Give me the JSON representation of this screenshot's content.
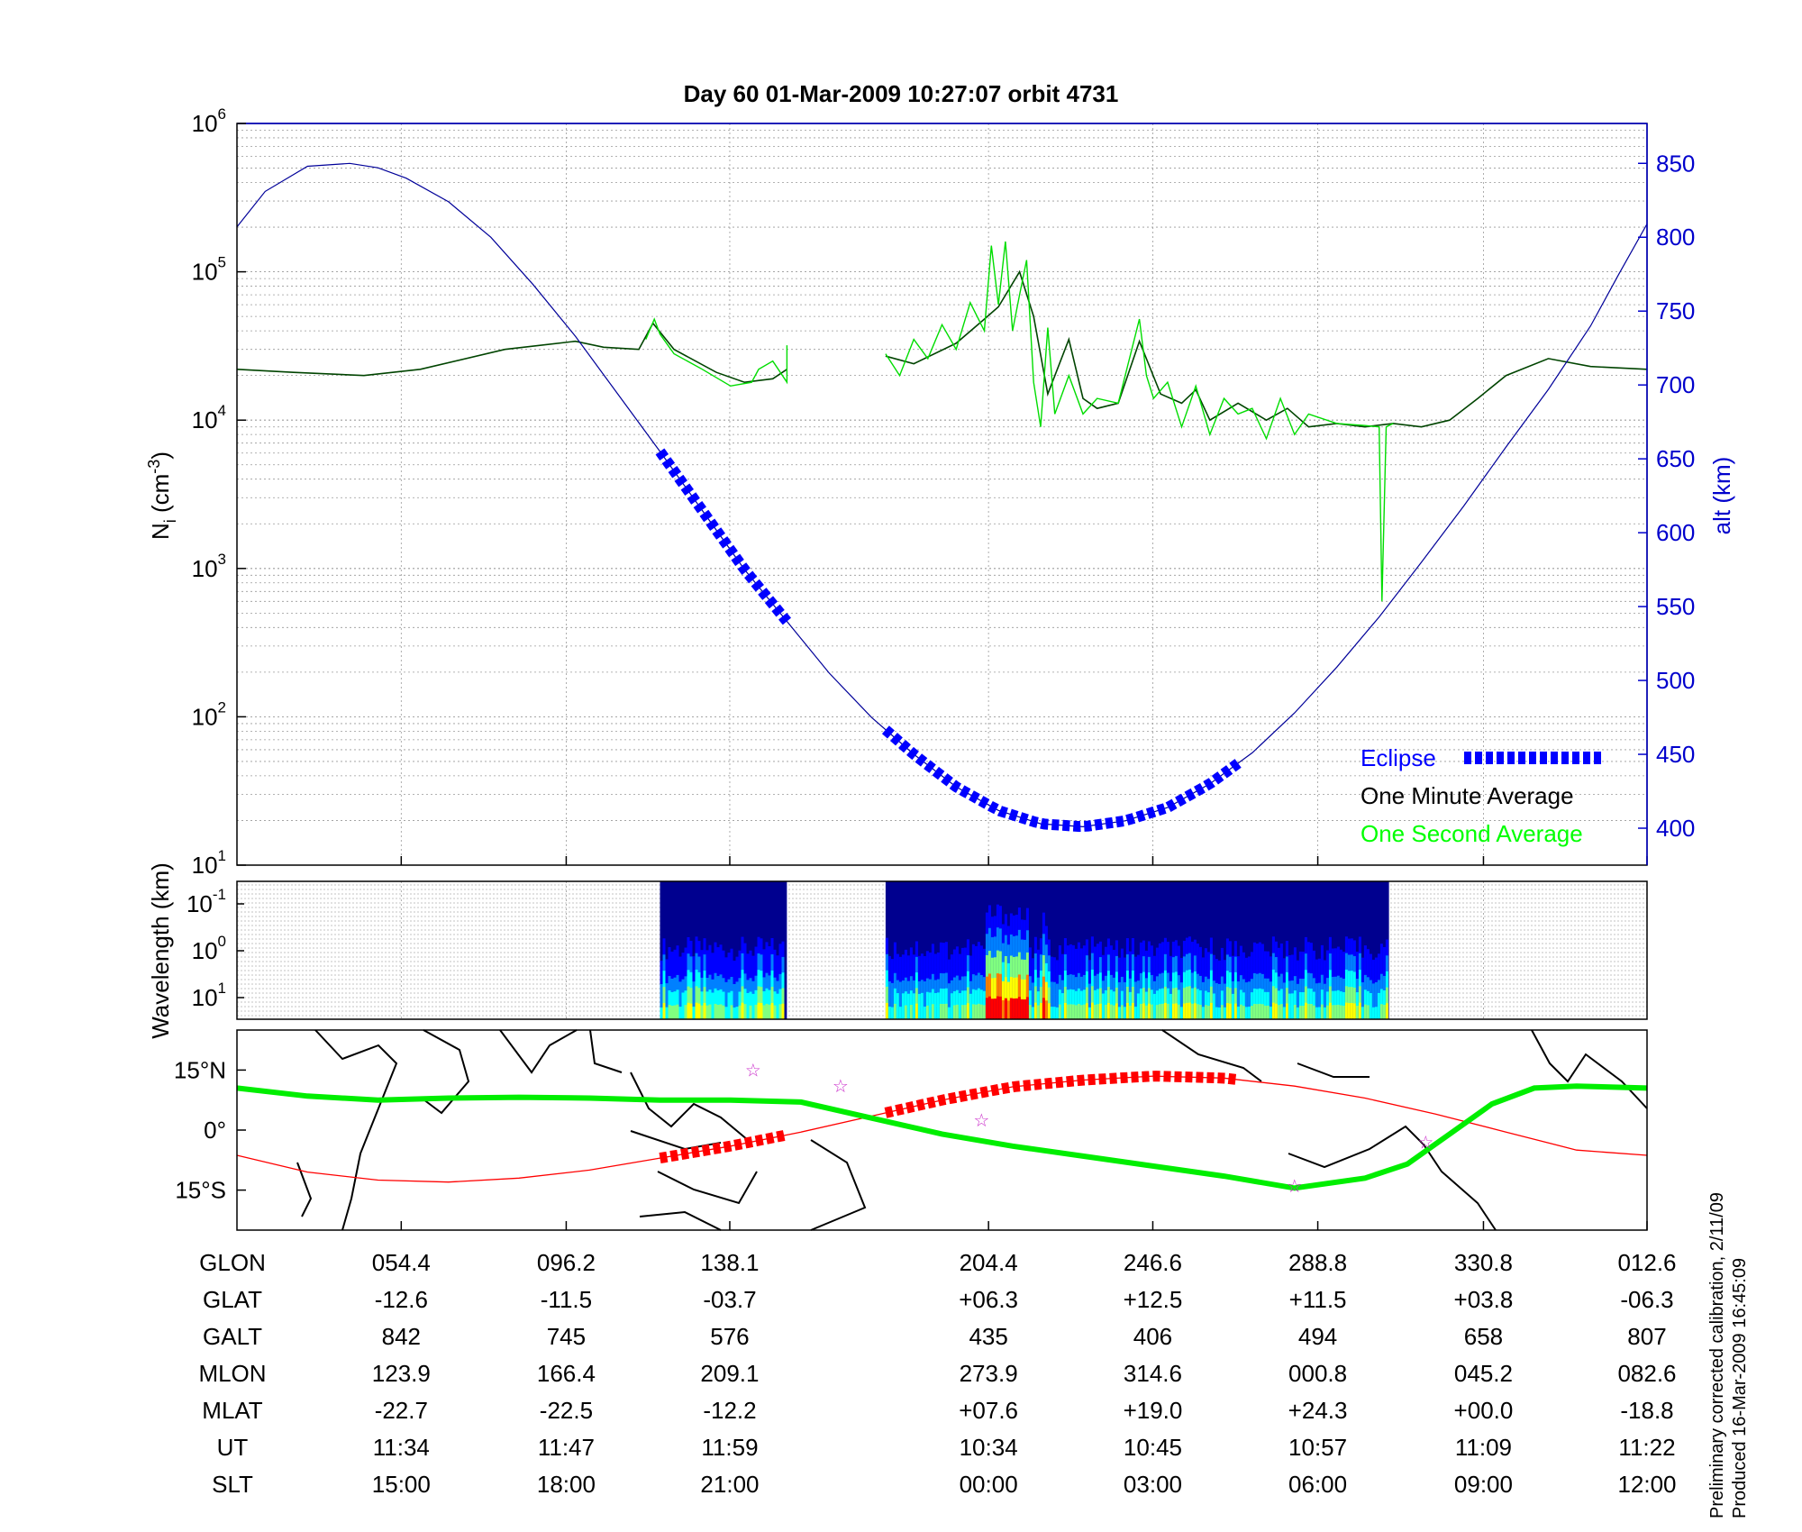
{
  "chart_data": [
    {
      "type": "line",
      "title": "Day 60  01-Mar-2009 10:27:07   orbit 4731",
      "ylabel_base": "N",
      "ylabel_sub": "i",
      "ylabel_unit_pre": " (cm",
      "ylabel_unit_sup": "-3",
      "ylabel_unit_post": ")",
      "y_scale": "log",
      "ylim": [
        10,
        1000000
      ],
      "y_ticks": [
        {
          "base": "10",
          "exp": "1"
        },
        {
          "base": "10",
          "exp": "2"
        },
        {
          "base": "10",
          "exp": "3"
        },
        {
          "base": "10",
          "exp": "4"
        },
        {
          "base": "10",
          "exp": "5"
        },
        {
          "base": "10",
          "exp": "6"
        }
      ],
      "y2label": "alt (km)",
      "y2lim": [
        375,
        877
      ],
      "y2_ticks": [
        "400",
        "450",
        "500",
        "550",
        "600",
        "650",
        "700",
        "750",
        "800",
        "850"
      ],
      "xlim": [
        0,
        1
      ],
      "grid": true,
      "legend_position": "bottom-right",
      "legend": [
        {
          "label": "Eclipse",
          "color": "#0000ff",
          "style": "thick-dashed"
        },
        {
          "label": "One Minute Average",
          "color": "#000000",
          "style": "line"
        },
        {
          "label": "One Second Average",
          "color": "#00ff00",
          "style": "line"
        }
      ],
      "series": [
        {
          "name": "One Minute Average",
          "color": "#004400",
          "axis": "left",
          "segments": [
            {
              "x": [
                0.0,
                0.04,
                0.09,
                0.13,
                0.19,
                0.24,
                0.26,
                0.285,
                0.295,
                0.31,
                0.34,
                0.36,
                0.38,
                0.39
              ],
              "y": [
                22000,
                21000,
                20000,
                22000,
                30000,
                34000,
                31000,
                30000,
                45000,
                30000,
                21000,
                18000,
                19000,
                22000
              ]
            },
            {
              "x": [
                0.46,
                0.48,
                0.51,
                0.53,
                0.54,
                0.555,
                0.565,
                0.575,
                0.59,
                0.6,
                0.61,
                0.625,
                0.64,
                0.655,
                0.67,
                0.68,
                0.69,
                0.71,
                0.73,
                0.745,
                0.76,
                0.78,
                0.8,
                0.82,
                0.84,
                0.86,
                0.88,
                0.9,
                0.93,
                0.96,
                1.0
              ],
              "y": [
                27000,
                24000,
                33000,
                48000,
                58000,
                100000,
                50000,
                15000,
                35000,
                14000,
                12000,
                13000,
                34000,
                15000,
                13000,
                16000,
                10000,
                13000,
                10000,
                12000,
                9000,
                9500,
                9000,
                9500,
                9000,
                10000,
                14000,
                20000,
                26000,
                23000,
                22000
              ]
            }
          ]
        },
        {
          "name": "One Second Average",
          "color": "#00dd00",
          "axis": "left",
          "segments": [
            {
              "x": [
                0.29,
                0.296,
                0.3,
                0.31,
                0.33,
                0.35,
                0.365,
                0.37,
                0.38,
                0.39,
                0.39
              ],
              "y": [
                35000,
                48000,
                38000,
                28000,
                22000,
                17000,
                18000,
                22000,
                25000,
                18000,
                32000
              ]
            },
            {
              "x": [
                0.46,
                0.47,
                0.48,
                0.49,
                0.5,
                0.51,
                0.52,
                0.53,
                0.535,
                0.54,
                0.545,
                0.55,
                0.555,
                0.56,
                0.565,
                0.57,
                0.575,
                0.58,
                0.59,
                0.6,
                0.61,
                0.625,
                0.64,
                0.645,
                0.65,
                0.66,
                0.67,
                0.68,
                0.69,
                0.7,
                0.71,
                0.72,
                0.73,
                0.74,
                0.75,
                0.76,
                0.78,
                0.8,
                0.81,
                0.812,
                0.815,
                0.82
              ],
              "y": [
                28000,
                20000,
                35000,
                26000,
                44000,
                30000,
                62000,
                40000,
                150000,
                60000,
                160000,
                40000,
                70000,
                120000,
                18000,
                9000,
                42000,
                11000,
                20000,
                11000,
                14000,
                13000,
                48000,
                20000,
                14000,
                18000,
                9000,
                17000,
                8000,
                14000,
                11000,
                12000,
                7500,
                14000,
                8000,
                11000,
                9500,
                9200,
                9000,
                600,
                9000,
                9500
              ]
            }
          ]
        },
        {
          "name": "alt (km)",
          "color": "#000099",
          "axis": "right",
          "x": [
            0.0,
            0.02,
            0.05,
            0.08,
            0.1,
            0.12,
            0.15,
            0.18,
            0.21,
            0.24,
            0.27,
            0.3,
            0.33,
            0.36,
            0.39,
            0.42,
            0.45,
            0.48,
            0.51,
            0.54,
            0.57,
            0.6,
            0.63,
            0.66,
            0.69,
            0.72,
            0.75,
            0.78,
            0.81,
            0.84,
            0.87,
            0.9,
            0.93,
            0.96,
            0.98,
            1.0
          ],
          "y": [
            807,
            831,
            848,
            850,
            847,
            840,
            824,
            800,
            768,
            733,
            694,
            655,
            615,
            575,
            540,
            505,
            475,
            450,
            428,
            412,
            403,
            401,
            405,
            414,
            430,
            451,
            478,
            509,
            543,
            580,
            618,
            658,
            697,
            740,
            775,
            809
          ]
        }
      ],
      "eclipse_segments": [
        {
          "x": [
            0.3,
            0.39
          ]
        },
        {
          "x": [
            0.46,
            0.71
          ]
        }
      ]
    },
    {
      "type": "heatmap",
      "ylabel": "Wavelength (km)",
      "y_ticks": [
        {
          "base": "10",
          "exp": "-1"
        },
        {
          "base": "10",
          "exp": "0"
        },
        {
          "base": "10",
          "exp": "1"
        }
      ],
      "data_ranges_x": [
        [
          0.3,
          0.39
        ],
        [
          0.46,
          0.817
        ]
      ],
      "colorscale": [
        "#00008f",
        "#0000ff",
        "#0080ff",
        "#00ffff",
        "#80ff80",
        "#ffff00",
        "#ff8000",
        "#ff0000"
      ]
    },
    {
      "type": "map",
      "y_ticks": [
        "15°N",
        "0°",
        "15°S"
      ],
      "ylim": [
        -25,
        25
      ],
      "orbit_track_color": "#00ee00",
      "magnetic_track_color": "#ff0000",
      "eclipse_color": "#ff0000",
      "orbit_track": {
        "x": [
          0.0,
          0.05,
          0.1,
          0.15,
          0.2,
          0.25,
          0.3,
          0.35,
          0.4,
          0.45,
          0.5,
          0.55,
          0.6,
          0.65,
          0.7,
          0.75,
          0.8,
          0.83,
          0.86,
          0.89,
          0.92,
          0.95,
          1.0
        ],
        "y": [
          10.5,
          8.5,
          7.5,
          8.0,
          8.2,
          8.0,
          7.5,
          7.5,
          7.0,
          3.0,
          -1.0,
          -4.0,
          -6.5,
          -9.0,
          -11.5,
          -14.5,
          -12.0,
          -8.5,
          -1.0,
          6.5,
          10.5,
          11.0,
          10.5
        ]
      },
      "magnetic_track": {
        "x": [
          0.0,
          0.05,
          0.1,
          0.15,
          0.2,
          0.25,
          0.3,
          0.35,
          0.4,
          0.45,
          0.5,
          0.55,
          0.6,
          0.65,
          0.7,
          0.75,
          0.8,
          0.85,
          0.9,
          0.95,
          1.0
        ],
        "y": [
          -6.3,
          -10.5,
          -12.5,
          -13.0,
          -12.0,
          -10.0,
          -7.0,
          -4.0,
          -0.5,
          3.5,
          7.5,
          10.8,
          12.5,
          13.5,
          13.0,
          11.0,
          8.0,
          4.0,
          -0.5,
          -5.0,
          -6.3
        ]
      },
      "eclipse_segments": [
        {
          "x": [
            0.3,
            0.39
          ]
        },
        {
          "x": [
            0.46,
            0.71
          ]
        }
      ],
      "stars": [
        {
          "x": 0.366,
          "y": 15.0
        },
        {
          "x": 0.428,
          "y": 11.0
        },
        {
          "x": 0.528,
          "y": 2.5
        },
        {
          "x": 0.75,
          "y": -14.0
        },
        {
          "x": 0.843,
          "y": -3.0
        }
      ]
    }
  ],
  "tick_x_positions": [
    0.1165,
    0.2335,
    0.3495,
    0.533,
    0.6495,
    0.7665,
    0.884,
    1.0
  ],
  "table": {
    "rows": [
      {
        "label": "GLON",
        "values": [
          "054.4",
          "096.2",
          "138.1",
          "204.4",
          "246.6",
          "288.8",
          "330.8",
          "012.6"
        ]
      },
      {
        "label": "GLAT",
        "values": [
          "-12.6",
          "-11.5",
          "-03.7",
          "+06.3",
          "+12.5",
          "+11.5",
          "+03.8",
          "-06.3"
        ]
      },
      {
        "label": "GALT",
        "values": [
          "842",
          "745",
          "576",
          "435",
          "406",
          "494",
          "658",
          "807"
        ]
      },
      {
        "label": "MLON",
        "values": [
          "123.9",
          "166.4",
          "209.1",
          "273.9",
          "314.6",
          "000.8",
          "045.2",
          "082.6"
        ]
      },
      {
        "label": "MLAT",
        "values": [
          "-22.7",
          "-22.5",
          "-12.2",
          "+07.6",
          "+19.0",
          "+24.3",
          "+00.0",
          "-18.8"
        ]
      },
      {
        "label": "UT",
        "values": [
          "11:34",
          "11:47",
          "11:59",
          "10:34",
          "10:45",
          "10:57",
          "11:09",
          "11:22"
        ]
      },
      {
        "label": "SLT",
        "values": [
          "15:00",
          "18:00",
          "21:00",
          "00:00",
          "03:00",
          "06:00",
          "09:00",
          "12:00"
        ]
      }
    ]
  },
  "footnote": {
    "line1": "Preliminary corrected calibration, 2/11/09",
    "line2": "Produced 16-Mar-2009 16:45:09"
  }
}
